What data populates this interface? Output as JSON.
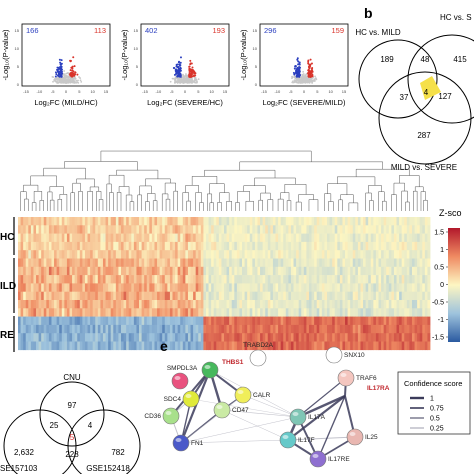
{
  "panels": {
    "b_letter": "b",
    "e_letter": "e"
  },
  "volcano": {
    "y_axis_label": "-Log₁₀(P-value)",
    "x_ticks": [
      "-15",
      "-10",
      "-5",
      "0",
      "5",
      "10",
      "15"
    ],
    "y_ticks": [
      "0",
      "5",
      "10",
      "15"
    ],
    "plots": [
      {
        "down": "166",
        "up": "113",
        "xlabel": "Log₂FC (MILD/HC)"
      },
      {
        "down": "402",
        "up": "193",
        "xlabel": "Log₂FC (SEVERE/HC)"
      },
      {
        "down": "296",
        "up": "159",
        "xlabel": "Log₂FC (SEVERE/MILD)"
      }
    ],
    "colors": {
      "down": "#2b3fbf",
      "up": "#d9342b",
      "ns": "#c8c8c8"
    }
  },
  "venn_b": {
    "label_left": "HC vs. MILD",
    "label_right": "HC vs. S",
    "label_bottom": "MILD vs. SEVERE",
    "regions": {
      "a_only": "189",
      "ab": "48",
      "b_only": "415",
      "ac": "37",
      "abc": "4",
      "bc": "127",
      "c_only": "287"
    },
    "highlight": "#f5e04a"
  },
  "heatmap": {
    "rows": [
      "HC",
      "ILD",
      "RE"
    ],
    "legend_title": "Z-sco",
    "legend_ticks": [
      "1.5",
      "1",
      "0.5",
      "0",
      "-0.5",
      "-1",
      "-1.5"
    ],
    "colors": {
      "high": "#c0272d",
      "mid": "#fdf6c2",
      "low": "#3a63a8"
    }
  },
  "venn_d": {
    "label_top": "CNU",
    "label_left": "SE157103",
    "label_right": "GSE152418",
    "regions": {
      "top_only": "97",
      "left_top": "25",
      "right_top": "4",
      "center": "5",
      "left_only": "2,632",
      "left_right": "228",
      "right_only": "782"
    }
  },
  "network": {
    "nodes": [
      {
        "label": "SMPDL3A",
        "color": "#e9527f",
        "highlight": false
      },
      {
        "label": "THBS1",
        "color": "#47b85d",
        "highlight": true
      },
      {
        "label": "TRABD2A",
        "color": "#ffffff",
        "highlight": false
      },
      {
        "label": "SNX10",
        "color": "#ffffff",
        "highlight": false
      },
      {
        "label": "SDC4",
        "color": "#e0ea3a",
        "highlight": false
      },
      {
        "label": "CALR",
        "color": "#f0ee5a",
        "highlight": false
      },
      {
        "label": "TRAF6",
        "color": "#f4c6bf",
        "highlight": false
      },
      {
        "label": "IL17RA",
        "color": "#e5a79d",
        "highlight": true
      },
      {
        "label": "CD36",
        "color": "#a8e08b",
        "highlight": false
      },
      {
        "label": "CD47",
        "color": "#caeaa4",
        "highlight": false
      },
      {
        "label": "IL17A",
        "color": "#7fc6b5",
        "highlight": false
      },
      {
        "label": "FN1",
        "color": "#4a59c9",
        "highlight": false
      },
      {
        "label": "IL17F",
        "color": "#66c9c9",
        "highlight": false
      },
      {
        "label": "IL25",
        "color": "#e9b7b1",
        "highlight": false
      },
      {
        "label": "IL17RE",
        "color": "#8e6fd0",
        "highlight": false
      }
    ],
    "legend": {
      "title": "Confidence score",
      "items": [
        "1",
        "0.75",
        "0.5",
        "0.25"
      ]
    }
  }
}
